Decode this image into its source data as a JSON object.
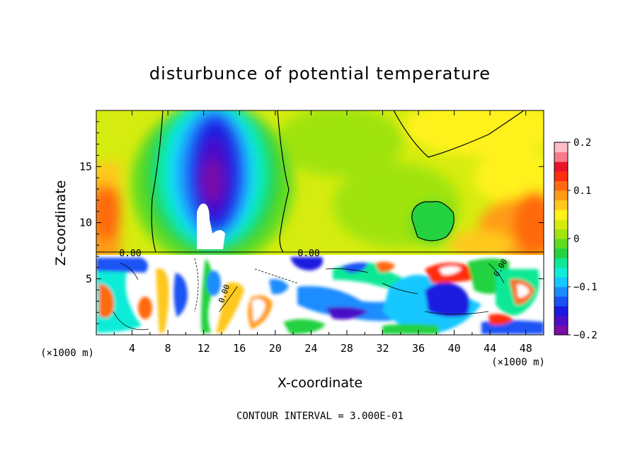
{
  "chart_data": {
    "type": "heatmap",
    "title": "disturbunce of potential temperature",
    "xlabel": "X-coordinate",
    "ylabel": "Z-coordinate",
    "x_unit": "(×1000 m)",
    "y_unit": "(×1000 m)",
    "xlim": [
      0,
      50
    ],
    "ylim": [
      0,
      20
    ],
    "x_ticks": [
      4,
      8,
      12,
      16,
      20,
      24,
      28,
      32,
      36,
      40,
      44,
      48
    ],
    "y_ticks": [
      5,
      10,
      15
    ],
    "colorbar": {
      "range": [
        -0.2,
        0.2
      ],
      "tick_labels": [
        "0.2",
        "0.1",
        "0",
        "−0.1",
        "−0.2"
      ],
      "tick_values": [
        0.2,
        0.1,
        0,
        -0.1,
        -0.2
      ],
      "colors": [
        "#7a0ca8",
        "#4a10c8",
        "#1a1ae0",
        "#1a52f5",
        "#1a8cff",
        "#14c8ff",
        "#10ecd8",
        "#10e896",
        "#24d240",
        "#60dc20",
        "#a0e410",
        "#d6ec10",
        "#fff21a",
        "#ffc81a",
        "#ff9c14",
        "#ff6a10",
        "#ff2e10",
        "#e8142a",
        "#f87a8a",
        "#ffbcc4"
      ]
    },
    "contour_label": "0.00",
    "contour_interval_text": "CONTOUR INTERVAL = 3.000E-01",
    "features": [
      {
        "name": "cold core",
        "x": 13.5,
        "z": 14,
        "value": -0.2
      },
      {
        "name": "warm region",
        "x": 48,
        "z": 10,
        "value": 0.12
      },
      {
        "name": "warm region",
        "x": 1,
        "z": 12,
        "value": 0.1
      },
      {
        "name": "green patch",
        "x": 37,
        "z": 10.5,
        "value": 0.0
      }
    ],
    "inversion_height": 7.2
  }
}
